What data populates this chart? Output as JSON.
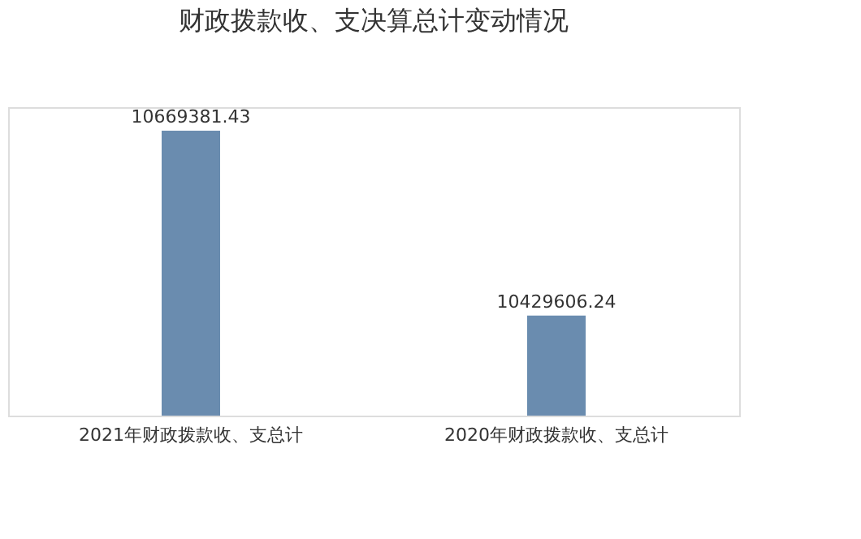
{
  "chart_data": {
    "type": "bar",
    "title": "财政拨款收、支决算总计变动情况",
    "categories": [
      "2021年财政拨款收、支总计",
      "2020年财政拨款收、支总计"
    ],
    "values": [
      10669381.43,
      10429606.24
    ],
    "color": "#6a8caf",
    "ylim": [
      10300000,
      10700000
    ],
    "data_labels": true,
    "tick_labels": "x"
  }
}
